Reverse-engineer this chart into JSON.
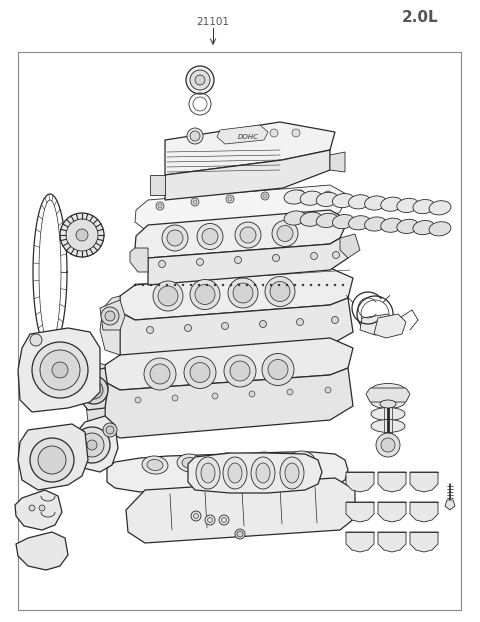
{
  "title_part_num": "21101",
  "title_displacement": "2.0L",
  "bg": "#ffffff",
  "lc": "#2a2a2a",
  "tc": "#555555",
  "fig_w": 4.8,
  "fig_h": 6.22,
  "dpi": 100
}
